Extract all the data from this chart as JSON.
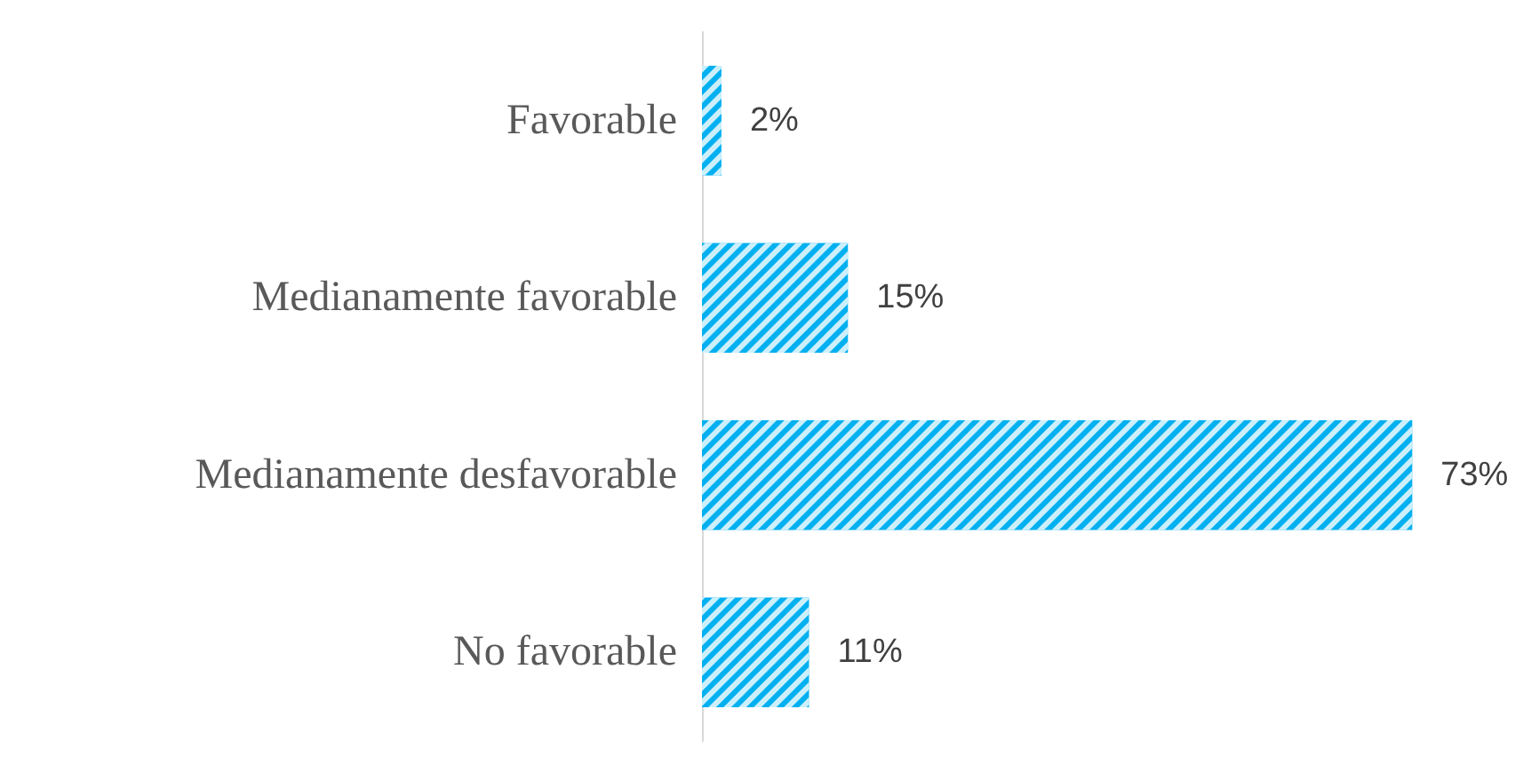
{
  "chart_data": {
    "type": "bar",
    "orientation": "horizontal",
    "categories": [
      "Favorable",
      "Medianamente favorable",
      "Medianamente desfavorable",
      "No favorable"
    ],
    "values": [
      2,
      15,
      73,
      11
    ],
    "value_labels": [
      "2%",
      "15%",
      "73%",
      "11%"
    ],
    "color": "#00b0f0",
    "grid": false
  }
}
